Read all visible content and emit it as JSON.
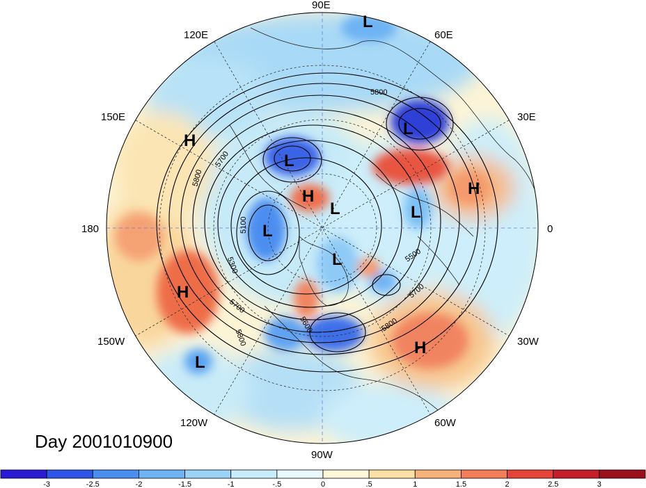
{
  "title": "Day 2001010900",
  "longitude_labels": {
    "top": "90E",
    "top_left": "120E",
    "top_right": "60E",
    "upper_left": "150E",
    "upper_right": "30E",
    "left": "180",
    "right": "0",
    "lower_left": "150W",
    "lower_right": "30W",
    "bottom_left": "120W",
    "bottom_right": "60W",
    "bottom": "90W"
  },
  "pressure_centers": [
    {
      "type": "L"
    },
    {
      "type": "L"
    },
    {
      "type": "L"
    },
    {
      "type": "L"
    },
    {
      "type": "L"
    },
    {
      "type": "L"
    },
    {
      "type": "L"
    },
    {
      "type": "L"
    },
    {
      "type": "H"
    },
    {
      "type": "H"
    },
    {
      "type": "H"
    },
    {
      "type": "H"
    },
    {
      "type": "H"
    }
  ],
  "contour_labels": [
    "5800",
    "5700",
    "5800",
    "5100",
    "5300",
    "5700",
    "5800",
    "5600",
    "5500",
    "5700",
    "5800"
  ],
  "colorbar": {
    "ticks": [
      "-3",
      "-2.5",
      "-2",
      "-1.5",
      "-1",
      "-.5",
      "0",
      ".5",
      "1",
      "1.5",
      "2",
      "2.5",
      "3"
    ],
    "colors": [
      "#2a1ad4",
      "#2f55e8",
      "#4a8ef0",
      "#6eb3f4",
      "#9bd3f7",
      "#c8ecf9",
      "#e9f8fb",
      "#fdf6d8",
      "#fbe0a5",
      "#f7b27a",
      "#f27e5a",
      "#e64438",
      "#c51d2a",
      "#9c0f1d"
    ]
  }
}
